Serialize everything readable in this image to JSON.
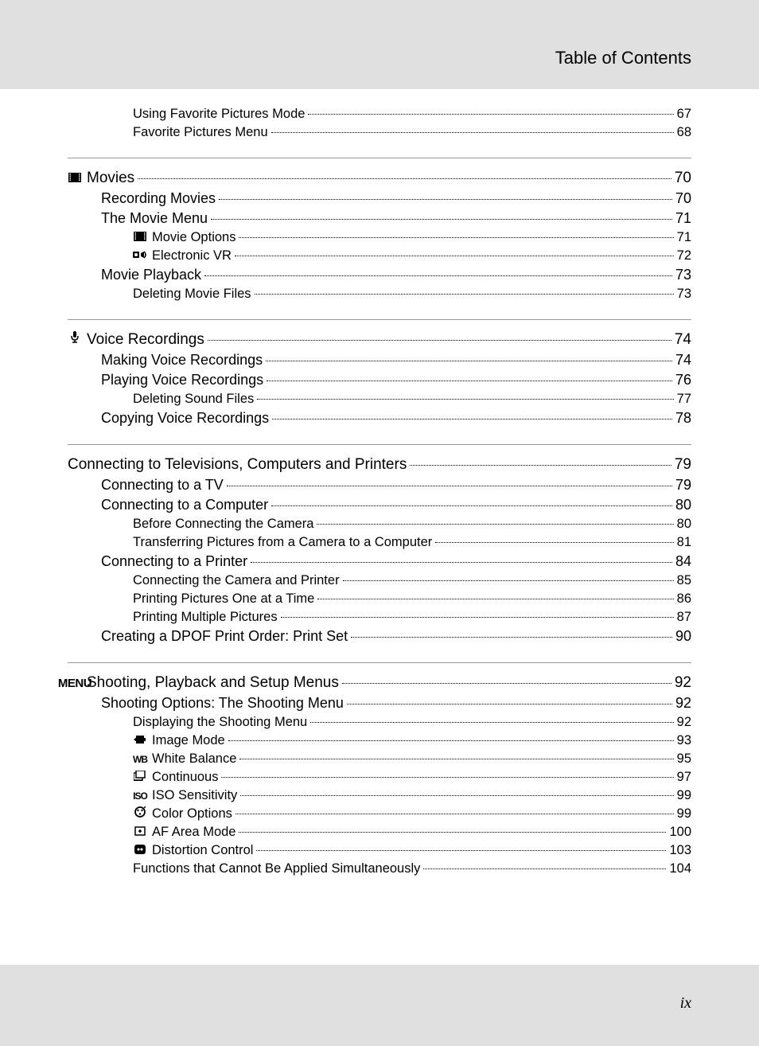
{
  "header_title": "Table of Contents",
  "page_footer": "ix",
  "colors": {
    "page_bg": "#e0e0e0",
    "content_bg": "#ffffff",
    "text": "#000000",
    "divider": "#9a9a9a"
  },
  "typography": {
    "body_font": "Segoe UI / Myriad Pro / Arial",
    "lvl0_fontsize": 19,
    "lvl1_fontsize": 18,
    "lvl2_fontsize": 16.5,
    "header_fontsize": 22,
    "footer_fontsize": 20
  },
  "sections": [
    {
      "entries": [
        {
          "level": 2,
          "label": "Using Favorite Pictures Mode",
          "page": "67"
        },
        {
          "level": 2,
          "label": "Favorite Pictures Menu",
          "page": "68"
        }
      ]
    },
    {
      "entries": [
        {
          "level": 0,
          "icon": "movie",
          "label": "Movies",
          "page": "70"
        },
        {
          "level": 1,
          "label": "Recording Movies",
          "page": "70"
        },
        {
          "level": 1,
          "label": "The Movie Menu",
          "page": "71"
        },
        {
          "level": 2,
          "icon": "movie",
          "label": "Movie Options",
          "page": "71"
        },
        {
          "level": 2,
          "icon": "vr",
          "label": "Electronic VR",
          "page": "72"
        },
        {
          "level": 1,
          "label": "Movie Playback",
          "page": "73"
        },
        {
          "level": 2,
          "label": "Deleting Movie Files",
          "page": "73"
        }
      ]
    },
    {
      "entries": [
        {
          "level": 0,
          "icon": "mic",
          "label": "Voice Recordings",
          "page": "74"
        },
        {
          "level": 1,
          "label": "Making Voice Recordings",
          "page": "74"
        },
        {
          "level": 1,
          "label": "Playing Voice Recordings",
          "page": "76"
        },
        {
          "level": 2,
          "label": "Deleting Sound Files",
          "page": "77"
        },
        {
          "level": 1,
          "label": "Copying Voice Recordings",
          "page": "78"
        }
      ]
    },
    {
      "entries": [
        {
          "level": 0,
          "label": "Connecting to Televisions, Computers and Printers",
          "page": "79"
        },
        {
          "level": 1,
          "label": "Connecting to a TV",
          "page": "79"
        },
        {
          "level": 1,
          "label": "Connecting to a Computer",
          "page": "80"
        },
        {
          "level": 2,
          "label": "Before Connecting the Camera",
          "page": "80"
        },
        {
          "level": 2,
          "label": "Transferring Pictures from a Camera to a Computer",
          "page": "81"
        },
        {
          "level": 1,
          "label": "Connecting to a Printer",
          "page": "84"
        },
        {
          "level": 2,
          "label": "Connecting the Camera and Printer",
          "page": "85"
        },
        {
          "level": 2,
          "label": "Printing Pictures One at a Time",
          "page": "86"
        },
        {
          "level": 2,
          "label": "Printing Multiple Pictures",
          "page": "87"
        },
        {
          "level": 1,
          "label": "Creating a DPOF Print Order: Print Set",
          "page": "90"
        }
      ]
    },
    {
      "entries": [
        {
          "level": 0,
          "icon": "menu",
          "label": "Shooting, Playback and Setup Menus",
          "page": "92"
        },
        {
          "level": 1,
          "label": "Shooting Options: The Shooting Menu",
          "page": "92"
        },
        {
          "level": 2,
          "label": "Displaying the Shooting Menu",
          "page": "92"
        },
        {
          "level": 2,
          "icon": "imagemode",
          "label": "Image Mode",
          "page": "93"
        },
        {
          "level": 2,
          "icon": "wb",
          "label": "White Balance",
          "page": "95"
        },
        {
          "level": 2,
          "icon": "continuous",
          "label": "Continuous",
          "page": "97"
        },
        {
          "level": 2,
          "icon": "iso",
          "label": "ISO Sensitivity",
          "page": "99"
        },
        {
          "level": 2,
          "icon": "color",
          "label": "Color Options",
          "page": "99"
        },
        {
          "level": 2,
          "icon": "afarea",
          "label": "AF Area Mode",
          "page": "100"
        },
        {
          "level": 2,
          "icon": "distortion",
          "label": "Distortion Control",
          "page": "103"
        },
        {
          "level": 2,
          "label": "Functions that Cannot Be Applied Simultaneously",
          "page": "104"
        }
      ]
    }
  ]
}
